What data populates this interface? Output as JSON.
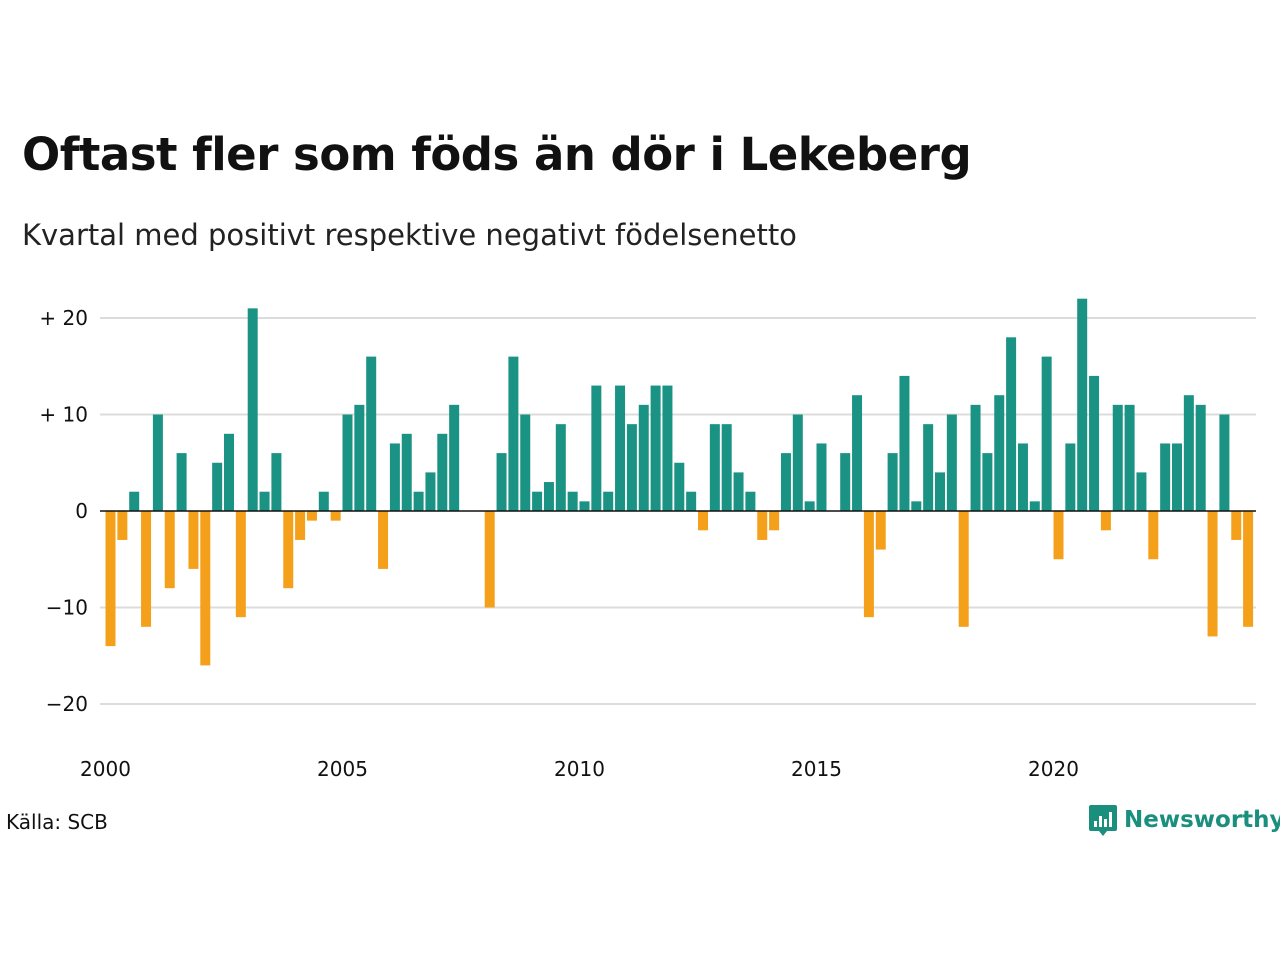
{
  "title": "Oftast fler som föds än dör i Lekeberg",
  "subtitle": "Kvartal med positivt respektive negativt födelsenetto",
  "source": "Källa: SCB",
  "brand": "Newsworthy",
  "colors": {
    "positive": "#1b9384",
    "negative": "#f5a01a",
    "grid": "#dcdcdc",
    "axis": "#111111"
  },
  "chart_data": {
    "type": "bar",
    "x_start_year": 2000,
    "quarters_per_year": 4,
    "ylim": [
      -24,
      22
    ],
    "yticks": [
      {
        "value": 20,
        "label": "+ 20"
      },
      {
        "value": 10,
        "label": "+ 10"
      },
      {
        "value": 0,
        "label": "0"
      },
      {
        "value": -10,
        "label": "−10"
      },
      {
        "value": -20,
        "label": "−20"
      }
    ],
    "xticks": [
      {
        "year": 2000,
        "label": "2000"
      },
      {
        "year": 2005,
        "label": "2005"
      },
      {
        "year": 2010,
        "label": "2010"
      },
      {
        "year": 2015,
        "label": "2015"
      },
      {
        "year": 2020,
        "label": "2020"
      }
    ],
    "values": [
      -14,
      -3,
      2,
      -12,
      10,
      -8,
      6,
      -6,
      -16,
      5,
      8,
      -11,
      21,
      2,
      6,
      -8,
      -3,
      -1,
      2,
      -1,
      10,
      11,
      16,
      -6,
      7,
      8,
      2,
      4,
      8,
      11,
      0,
      0,
      -10,
      6,
      16,
      10,
      2,
      3,
      9,
      2,
      1,
      13,
      2,
      13,
      9,
      11,
      13,
      13,
      5,
      2,
      -2,
      9,
      9,
      4,
      2,
      -3,
      -2,
      6,
      10,
      1,
      7,
      0,
      6,
      12,
      -11,
      -4,
      6,
      14,
      1,
      9,
      4,
      10,
      -12,
      11,
      6,
      12,
      18,
      7,
      1,
      16,
      -5,
      7,
      22,
      14,
      -2,
      11,
      11,
      4,
      -5,
      7,
      7,
      12,
      11,
      -13,
      10,
      -3,
      -12
    ]
  }
}
